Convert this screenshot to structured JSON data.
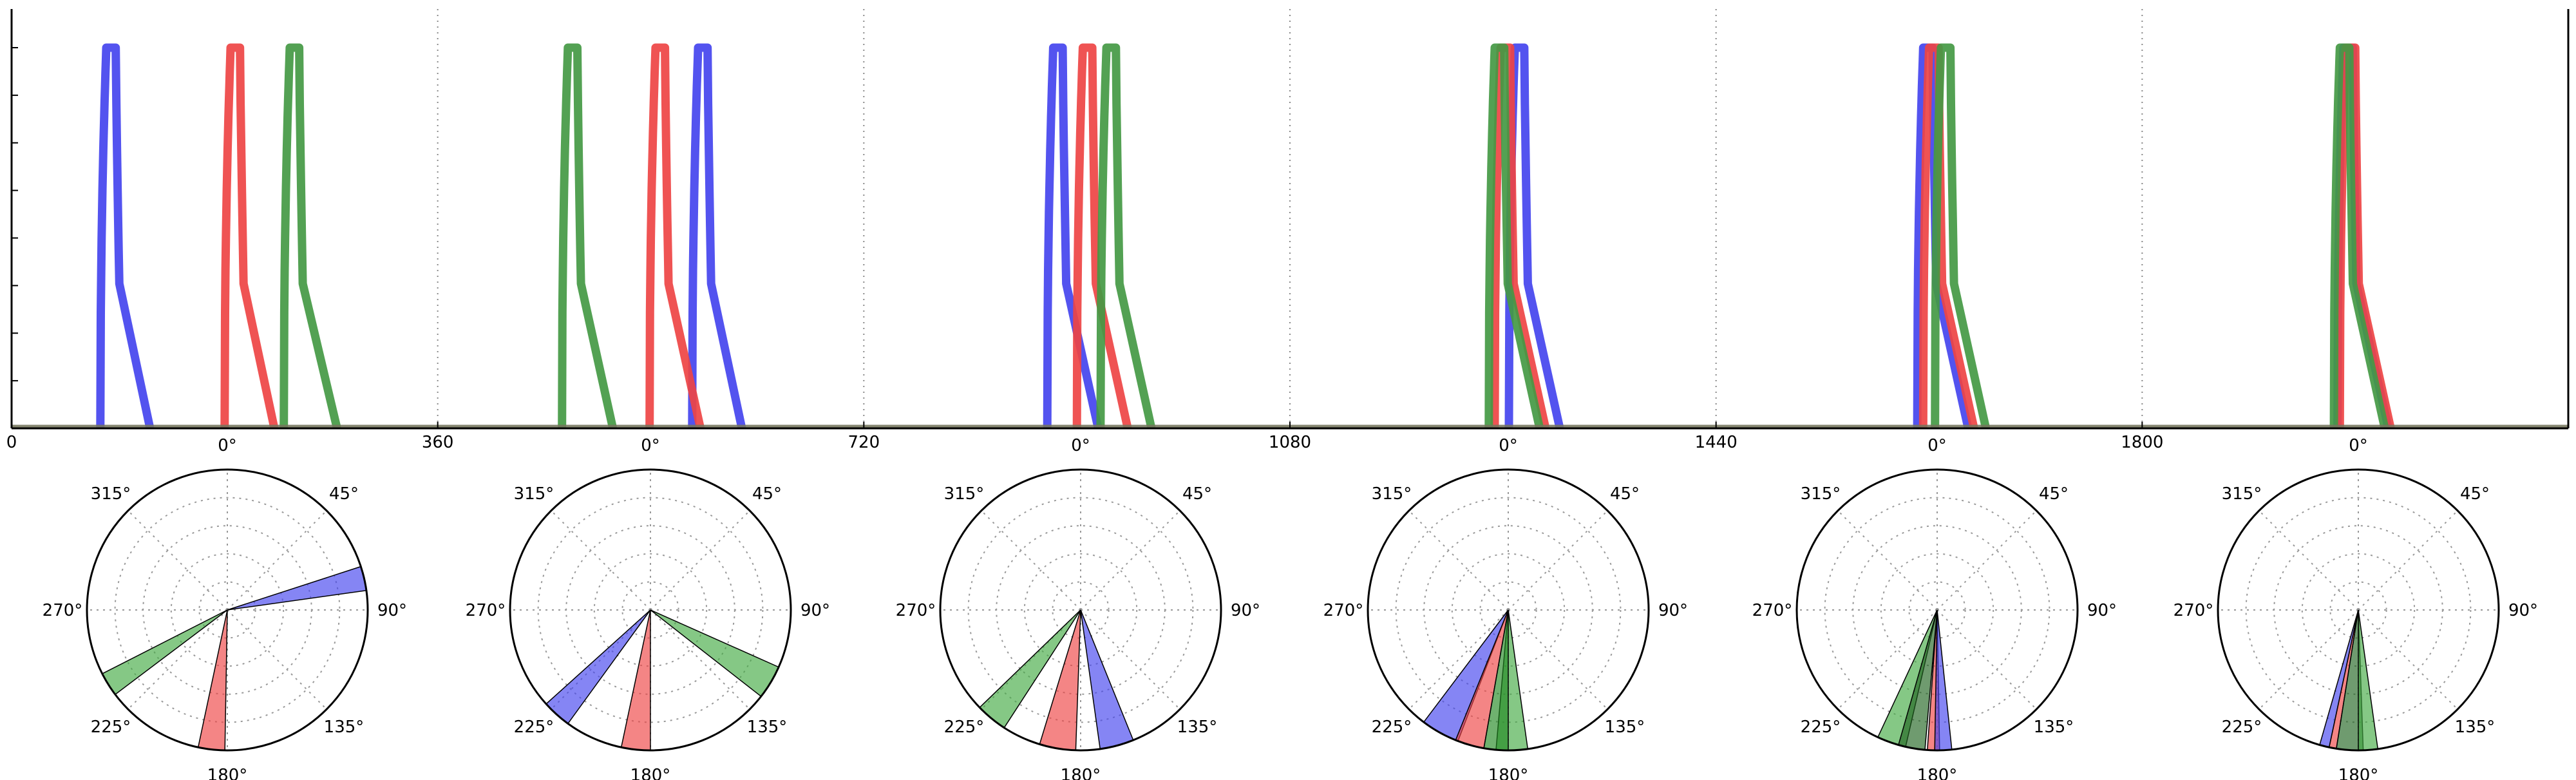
{
  "chart_data": [
    {
      "type": "line",
      "xlim": [
        0,
        2160
      ],
      "ylim": [
        0,
        1
      ],
      "x_ticks": [
        0,
        360,
        720,
        1080,
        1440,
        1800
      ],
      "x_tick_labels": [
        "0",
        "360",
        "720",
        "1080",
        "1440",
        "1800"
      ],
      "y_ticks": [
        0,
        0.125,
        0.25,
        0.375,
        0.5,
        0.625,
        0.75,
        0.875,
        1
      ],
      "vertical_gridlines_at": [
        360,
        720,
        1080,
        1440,
        1800
      ],
      "grid": "vertical dotted",
      "series": [
        {
          "color": "#4444ee",
          "pulses": [
            {
              "start": 75,
              "rise": 80,
              "peak_start": 82,
              "peak_end": 88,
              "fall": 91,
              "knee": 0.38,
              "end": 117
            },
            {
              "start": 575,
              "rise": 580,
              "peak_start": 582,
              "peak_end": 588,
              "fall": 591,
              "knee": 0.38,
              "end": 617
            },
            {
              "start": 875,
              "rise": 880,
              "peak_start": 882,
              "peak_end": 888,
              "fall": 891,
              "knee": 0.38,
              "end": 918
            },
            {
              "start": 1265,
              "rise": 1270,
              "peak_start": 1272,
              "peak_end": 1278,
              "fall": 1281,
              "knee": 0.38,
              "end": 1308
            },
            {
              "start": 1610,
              "rise": 1615,
              "peak_start": 1617,
              "peak_end": 1623,
              "fall": 1626,
              "knee": 0.38,
              "end": 1653
            },
            {
              "start": 1965,
              "rise": 1970,
              "peak_start": 1972,
              "peak_end": 1978,
              "fall": 1981,
              "knee": 0.38,
              "end": 2008
            }
          ]
        },
        {
          "color": "#ee4444",
          "pulses": [
            {
              "start": 180,
              "rise": 185,
              "peak_start": 187,
              "peak_end": 193,
              "fall": 196,
              "knee": 0.38,
              "end": 222
            },
            {
              "start": 539,
              "rise": 544,
              "peak_start": 546,
              "peak_end": 552,
              "fall": 555,
              "knee": 0.38,
              "end": 582
            },
            {
              "start": 900,
              "rise": 905,
              "peak_start": 907,
              "peak_end": 913,
              "fall": 916,
              "knee": 0.38,
              "end": 943
            },
            {
              "start": 1253,
              "rise": 1258,
              "peak_start": 1260,
              "peak_end": 1266,
              "fall": 1269,
              "knee": 0.38,
              "end": 1296
            },
            {
              "start": 1615,
              "rise": 1620,
              "peak_start": 1622,
              "peak_end": 1628,
              "fall": 1631,
              "knee": 0.38,
              "end": 1658
            },
            {
              "start": 1967,
              "rise": 1972,
              "peak_start": 1974,
              "peak_end": 1980,
              "fall": 1983,
              "knee": 0.38,
              "end": 2010
            }
          ]
        },
        {
          "color": "#449944",
          "pulses": [
            {
              "start": 230,
              "rise": 235,
              "peak_start": 237,
              "peak_end": 243,
              "fall": 246,
              "knee": 0.38,
              "end": 275
            },
            {
              "start": 465,
              "rise": 470,
              "peak_start": 472,
              "peak_end": 478,
              "fall": 481,
              "knee": 0.38,
              "end": 508
            },
            {
              "start": 920,
              "rise": 925,
              "peak_start": 927,
              "peak_end": 933,
              "fall": 936,
              "knee": 0.38,
              "end": 963
            },
            {
              "start": 1248,
              "rise": 1253,
              "peak_start": 1255,
              "peak_end": 1261,
              "fall": 1264,
              "knee": 0.38,
              "end": 1291
            },
            {
              "start": 1625,
              "rise": 1630,
              "peak_start": 1632,
              "peak_end": 1638,
              "fall": 1641,
              "knee": 0.38,
              "end": 1668
            },
            {
              "start": 1962,
              "rise": 1967,
              "peak_start": 1969,
              "peak_end": 1975,
              "fall": 1978,
              "knee": 0.38,
              "end": 2005
            }
          ]
        }
      ]
    },
    {
      "type": "polar",
      "theta_zero": "top",
      "theta_direction": "clockwise",
      "theta_ticks_deg": [
        0,
        45,
        90,
        135,
        180,
        225,
        270,
        315
      ],
      "theta_tick_labels": [
        "0°",
        "45°",
        "90°",
        "135°",
        "180°",
        "225°",
        "270°",
        "315°"
      ],
      "r_gridlines": [
        0.2,
        0.4,
        0.6,
        0.8
      ],
      "grid": "dotted",
      "panels": [
        {
          "wedges": [
            {
              "color": "#4444ee",
              "start_deg": 72,
              "end_deg": 82,
              "radius": 1.0
            },
            {
              "color": "#44aa44",
              "start_deg": 233,
              "end_deg": 243,
              "radius": 1.0
            },
            {
              "color": "#ee4444",
              "start_deg": 181,
              "end_deg": 192,
              "radius": 1.0
            }
          ]
        },
        {
          "wedges": [
            {
              "color": "#4444ee",
              "start_deg": 216,
              "end_deg": 228,
              "radius": 1.0
            },
            {
              "color": "#ee4444",
              "start_deg": 180,
              "end_deg": 192,
              "radius": 1.0
            },
            {
              "color": "#44aa44",
              "start_deg": 114,
              "end_deg": 128,
              "radius": 1.0
            }
          ]
        },
        {
          "wedges": [
            {
              "color": "#44aa44",
              "start_deg": 213,
              "end_deg": 226,
              "radius": 1.0
            },
            {
              "color": "#ee4444",
              "start_deg": 182,
              "end_deg": 197,
              "radius": 1.0
            },
            {
              "color": "#4444ee",
              "start_deg": 158,
              "end_deg": 172,
              "radius": 1.0
            }
          ]
        },
        {
          "wedges": [
            {
              "color": "#4444ee",
              "start_deg": 201,
              "end_deg": 217,
              "radius": 1.0
            },
            {
              "color": "#ee4444",
              "start_deg": 190,
              "end_deg": 202,
              "radius": 1.0
            },
            {
              "color": "#44aa44",
              "start_deg": 172,
              "end_deg": 185,
              "radius": 1.0
            },
            {
              "color": "#228822",
              "start_deg": 180,
              "end_deg": 190,
              "radius": 1.0
            }
          ]
        },
        {
          "wedges": [
            {
              "color": "#44aa44",
              "start_deg": 193,
              "end_deg": 205,
              "radius": 1.0
            },
            {
              "color": "#226622",
              "start_deg": 185,
              "end_deg": 196,
              "radius": 1.0
            },
            {
              "color": "#ee4444",
              "start_deg": 179,
              "end_deg": 184,
              "radius": 1.0
            },
            {
              "color": "#4444ee",
              "start_deg": 174,
              "end_deg": 181,
              "radius": 1.0
            }
          ]
        },
        {
          "wedges": [
            {
              "color": "#4444ee",
              "start_deg": 192,
              "end_deg": 196,
              "radius": 1.0
            },
            {
              "color": "#ee4444",
              "start_deg": 189,
              "end_deg": 192,
              "radius": 1.0
            },
            {
              "color": "#226622",
              "start_deg": 178,
              "end_deg": 189,
              "radius": 1.0
            },
            {
              "color": "#44aa44",
              "start_deg": 172,
              "end_deg": 180,
              "radius": 1.0
            }
          ]
        }
      ]
    }
  ]
}
